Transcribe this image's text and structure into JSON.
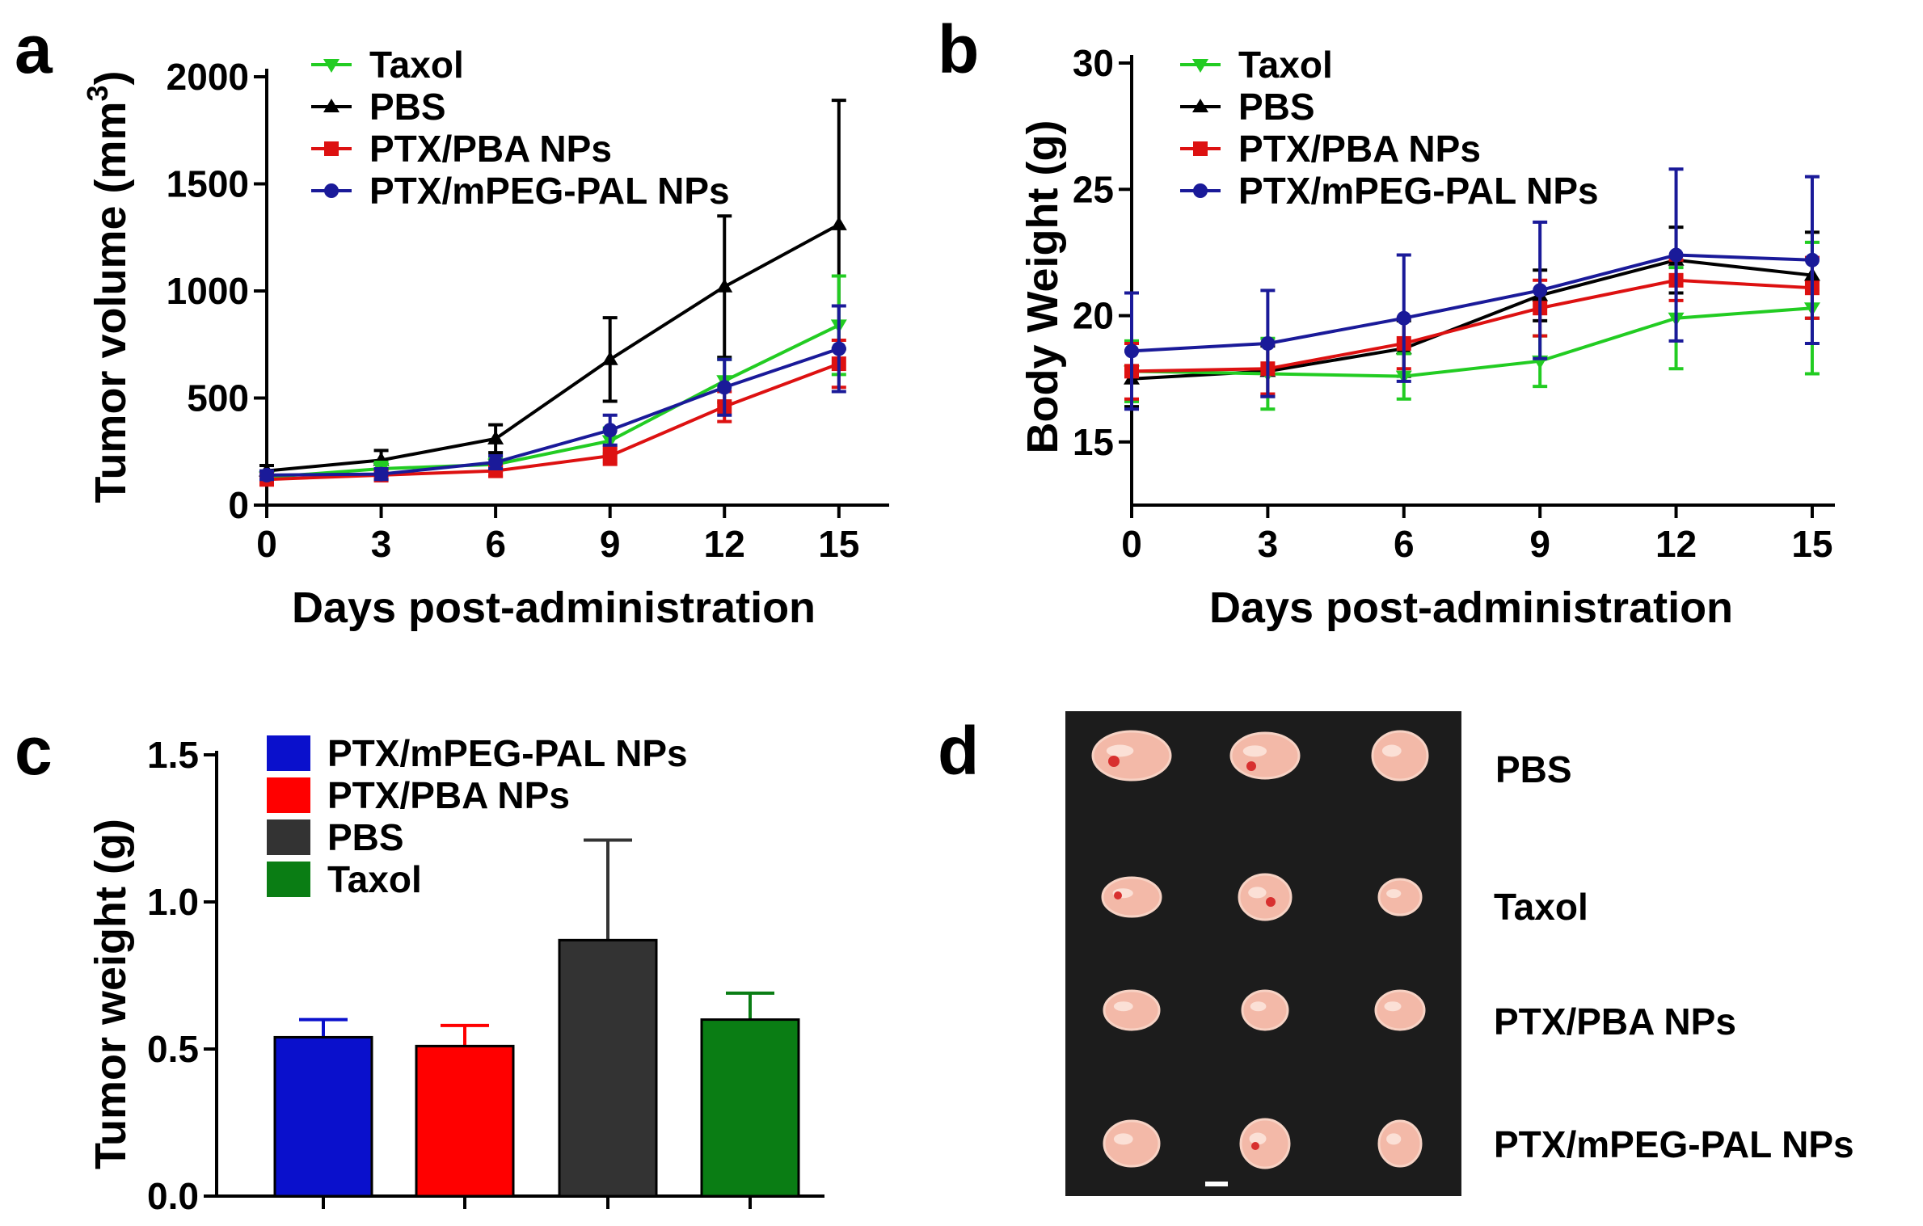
{
  "panels": {
    "a": "a",
    "b": "b",
    "c": "c",
    "d": "d"
  },
  "colors": {
    "taxol_line": "#22cc22",
    "pbs_line": "#000000",
    "pba_line": "#dd1111",
    "mpeg_line": "#1a1a99",
    "mpeg_bar": "#0a10cc",
    "pba_bar": "#ff0000",
    "pbs_bar": "#333333",
    "taxol_bar": "#0a7d14",
    "photo_bg": "#1c1c1c",
    "tumor": "#f3b9a8"
  },
  "chart_data": [
    {
      "id": "a",
      "type": "line",
      "title": "",
      "xlabel": "Days post-administration",
      "ylabel": "Tumor volume (mm",
      "ylabel_sup": "3",
      "ylabel_end": ")",
      "x": [
        0,
        3,
        6,
        9,
        12,
        15
      ],
      "xlim": [
        0,
        16
      ],
      "ylim": [
        0,
        2000
      ],
      "xticks": [
        "0",
        "3",
        "6",
        "9",
        "12",
        "15"
      ],
      "yticks": [
        "0",
        "500",
        "1000",
        "1500",
        "2000"
      ],
      "legend_position": "top-left",
      "series": [
        {
          "name": "Taxol",
          "marker": "triangle-down",
          "values": [
            130,
            170,
            190,
            300,
            580,
            840
          ],
          "errors": [
            20,
            30,
            30,
            60,
            100,
            230
          ]
        },
        {
          "name": "PBS",
          "marker": "triangle-up",
          "values": [
            160,
            210,
            310,
            680,
            1020,
            1310
          ],
          "errors": [
            25,
            45,
            65,
            195,
            330,
            580
          ]
        },
        {
          "name": "PTX/PBA NPs",
          "marker": "square",
          "values": [
            120,
            140,
            160,
            230,
            460,
            660
          ],
          "errors": [
            15,
            20,
            25,
            40,
            70,
            110
          ]
        },
        {
          "name": "PTX/mPEG-PAL NPs",
          "marker": "circle",
          "values": [
            140,
            145,
            200,
            350,
            550,
            730
          ],
          "errors": [
            20,
            25,
            30,
            70,
            130,
            200
          ]
        }
      ]
    },
    {
      "id": "b",
      "type": "line",
      "title": "",
      "xlabel": "Days post-administration",
      "ylabel": "Body Weight (g)",
      "x": [
        0,
        3,
        6,
        9,
        12,
        15
      ],
      "xlim": [
        0,
        15.5
      ],
      "ylim": [
        12.5,
        30
      ],
      "xticks": [
        "0",
        "3",
        "6",
        "9",
        "12",
        "15"
      ],
      "yticks": [
        "15",
        "20",
        "25",
        "30"
      ],
      "legend_position": "top-left",
      "series": [
        {
          "name": "Taxol",
          "marker": "triangle-down",
          "values": [
            17.8,
            17.7,
            17.6,
            18.2,
            19.9,
            20.3
          ],
          "errors": [
            1.2,
            1.4,
            0.9,
            1.0,
            2.0,
            2.6
          ]
        },
        {
          "name": "PBS",
          "marker": "triangle-up",
          "values": [
            17.5,
            17.8,
            18.7,
            20.8,
            22.2,
            21.6
          ],
          "errors": [
            1.1,
            1.0,
            1.1,
            1.0,
            1.3,
            1.7
          ]
        },
        {
          "name": "PTX/PBA NPs",
          "marker": "square",
          "values": [
            17.8,
            17.9,
            18.9,
            20.3,
            21.4,
            21.1
          ],
          "errors": [
            1.1,
            1.0,
            1.0,
            1.1,
            0.8,
            1.2
          ]
        },
        {
          "name": "PTX/mPEG-PAL NPs",
          "marker": "circle",
          "values": [
            18.6,
            18.9,
            19.9,
            21.0,
            22.4,
            22.2
          ],
          "errors": [
            2.3,
            2.1,
            2.5,
            2.7,
            3.4,
            3.3
          ]
        }
      ]
    },
    {
      "id": "c",
      "type": "bar",
      "title": "",
      "xlabel": "",
      "ylabel": "Tumor weight (g)",
      "categories": [
        "PTX/mPEG-PAL NPs",
        "PTX/PBA NPs",
        "PBS",
        "Taxol"
      ],
      "values": [
        0.54,
        0.51,
        0.87,
        0.6
      ],
      "errors": [
        0.06,
        0.07,
        0.34,
        0.09
      ],
      "ylim": [
        0,
        1.5
      ],
      "yticks": [
        "0.0",
        "0.5",
        "1.0",
        "1.5"
      ],
      "legend_position": "top-left",
      "legend": [
        "PTX/mPEG-PAL NPs",
        "PTX/PBA NPs",
        "PBS",
        "Taxol"
      ]
    }
  ],
  "photo": {
    "labels": [
      "PBS",
      "Taxol",
      "PTX/PBA NPs",
      "PTX/mPEG-PAL NPs"
    ]
  }
}
